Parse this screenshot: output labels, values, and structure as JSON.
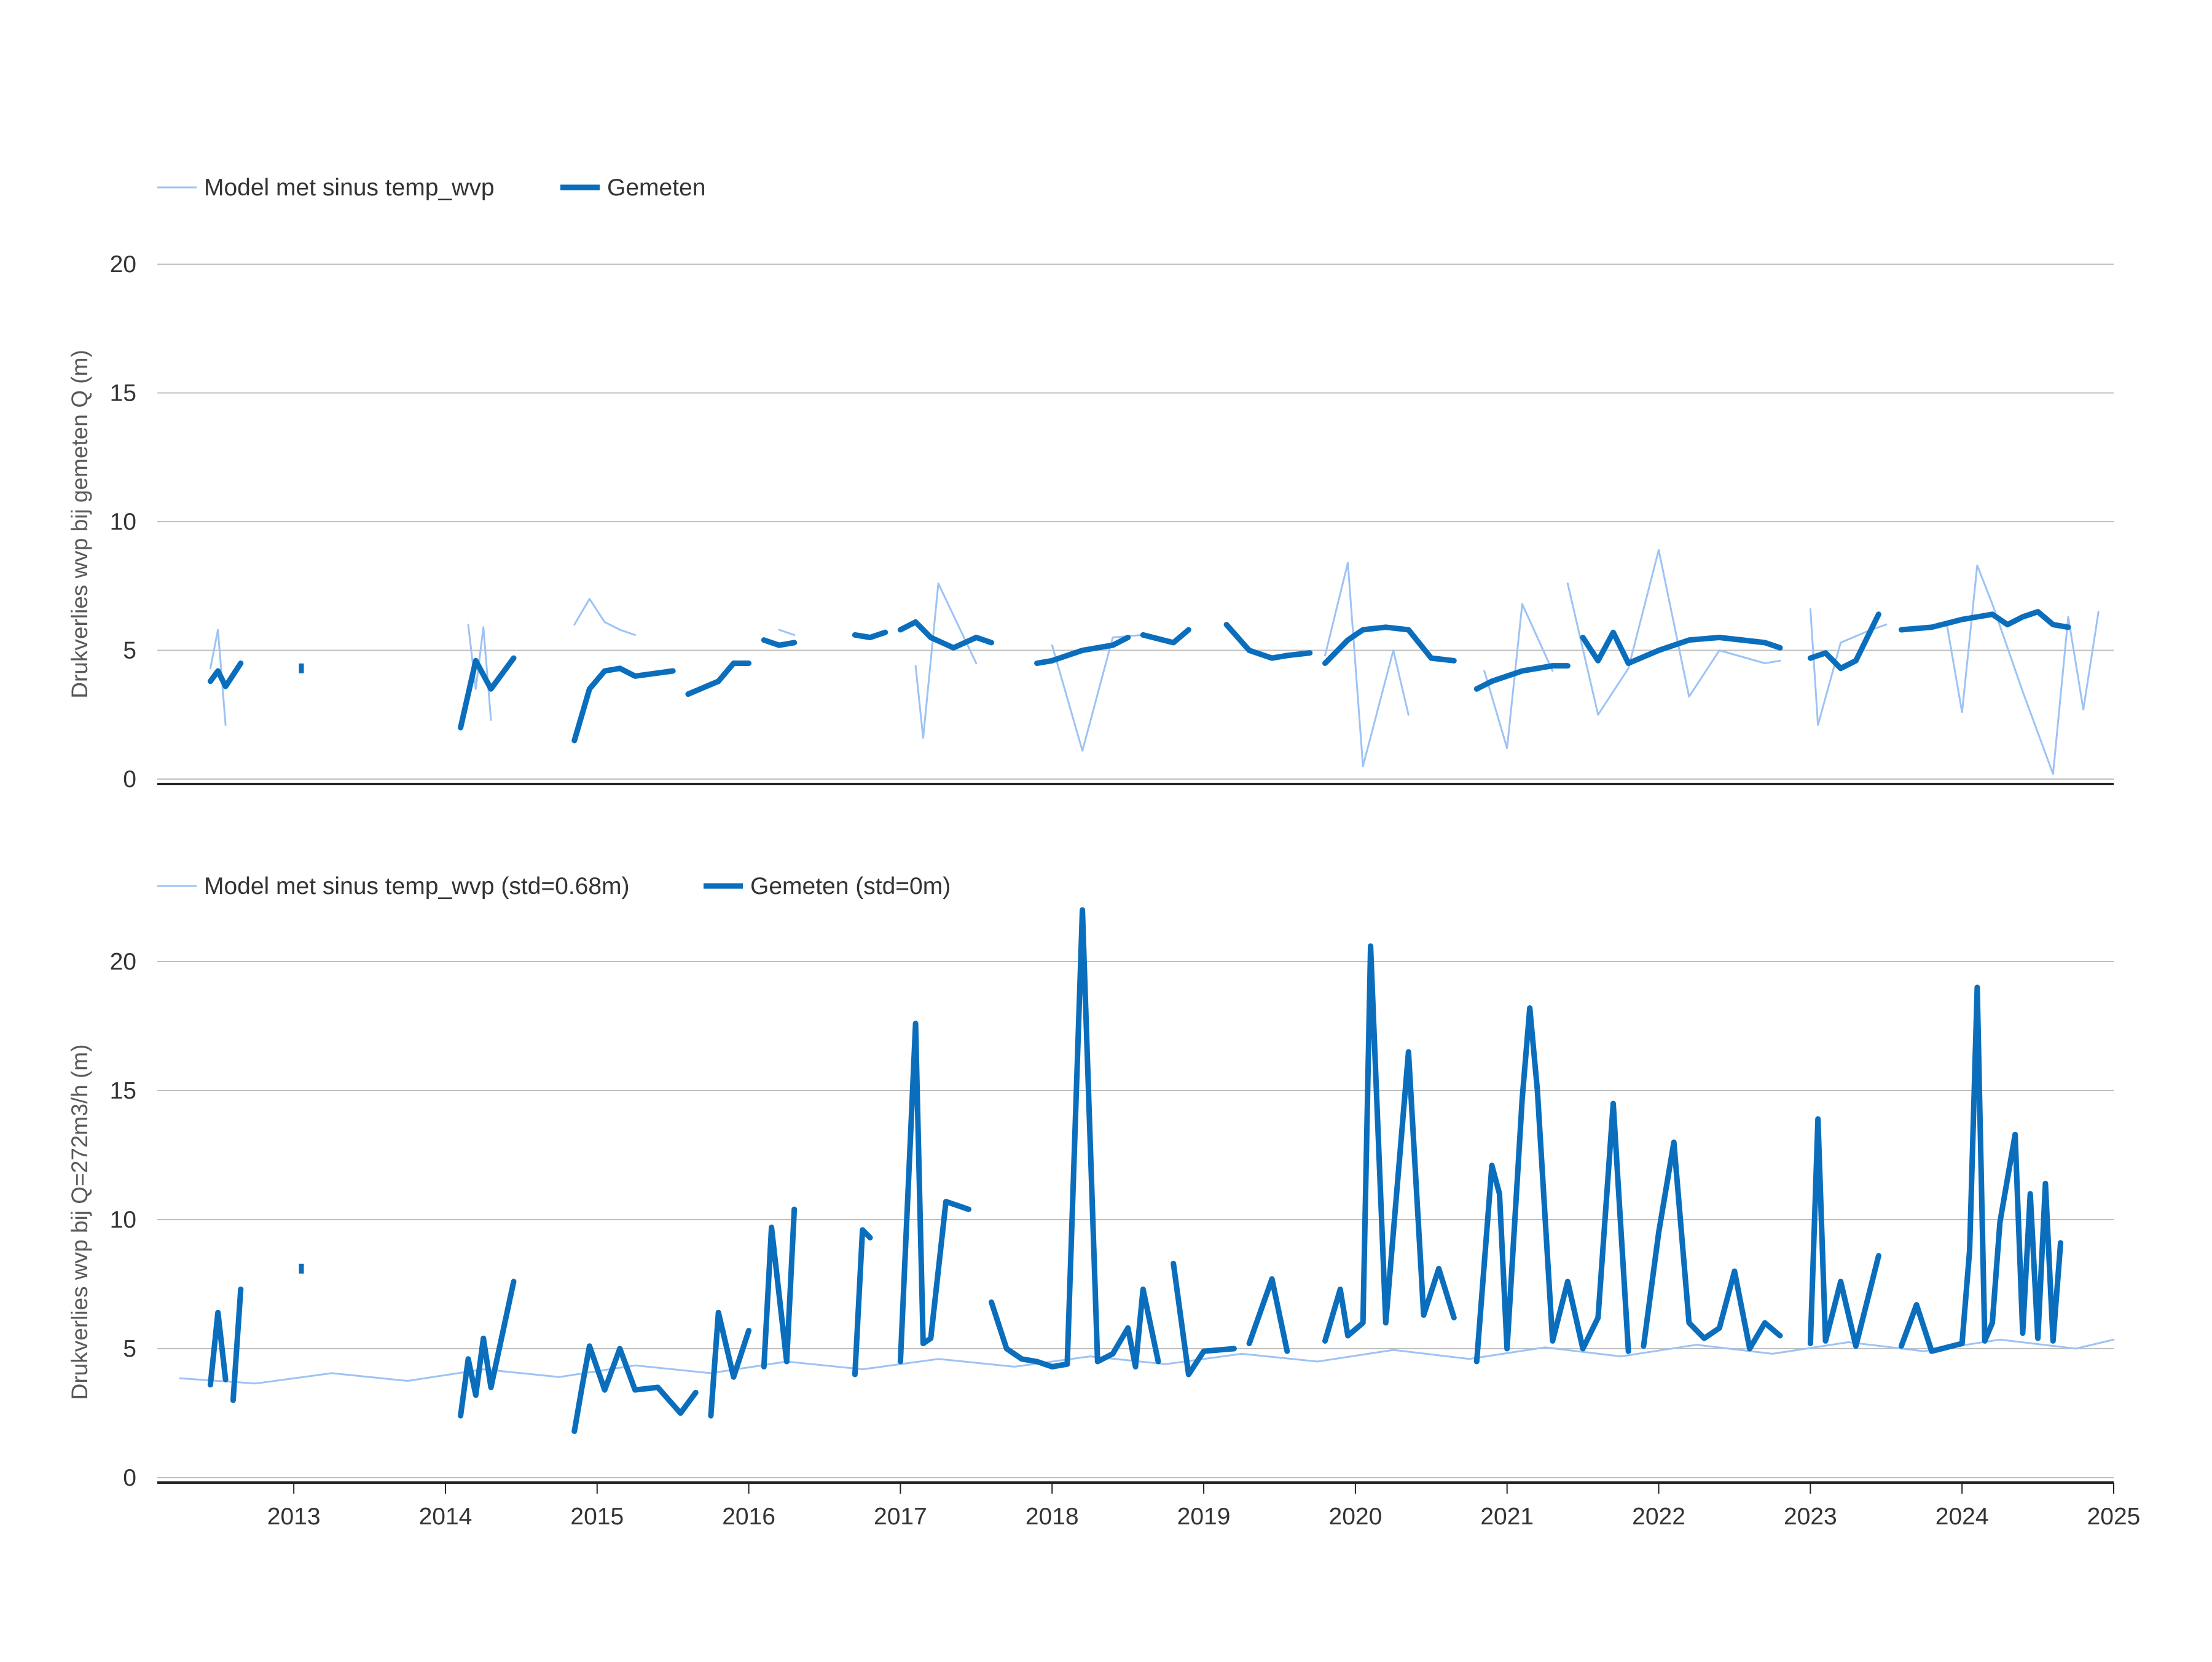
{
  "colors": {
    "model": "#9DC3F5",
    "gemeten": "#0A6EBD",
    "grid": "#BFBFBF",
    "axis": "#222222",
    "text": "#333333"
  },
  "x_axis": {
    "tick_labels": [
      "2013",
      "2014",
      "2015",
      "2016",
      "2017",
      "2018",
      "2019",
      "2020",
      "2021",
      "2022",
      "2023",
      "2024",
      "2025"
    ],
    "range": [
      2012.1,
      2025.0
    ]
  },
  "chart_data": [
    {
      "type": "line",
      "legend": [
        {
          "name": "Model met sinus temp_wvp",
          "style": "thin"
        },
        {
          "name": "Gemeten",
          "style": "thick"
        }
      ],
      "xlabel": "",
      "ylabel": "Drukverlies wvp bij gemeten Q (m)",
      "ylim": [
        0,
        20
      ],
      "yticks": [
        "0",
        "5",
        "10",
        "15",
        "20"
      ],
      "grid": true,
      "legend_position": "top-left",
      "series": [
        {
          "name": "Model met sinus temp_wvp",
          "segments": [
            {
              "x": [
                2012.45,
                2012.5,
                2012.55
              ],
              "y": [
                4.3,
                5.8,
                2.1
              ]
            },
            {
              "x": [
                2014.15,
                2014.2,
                2014.25,
                2014.3
              ],
              "y": [
                6.0,
                3.5,
                5.9,
                2.3
              ]
            },
            {
              "x": [
                2014.85,
                2014.95,
                2015.05,
                2015.15,
                2015.25
              ],
              "y": [
                6.0,
                7.0,
                6.1,
                5.8,
                5.6
              ]
            },
            {
              "x": [
                2016.2,
                2016.3
              ],
              "y": [
                5.8,
                5.6
              ]
            },
            {
              "x": [
                2017.1,
                2017.15,
                2017.25,
                2017.5
              ],
              "y": [
                4.4,
                1.6,
                7.6,
                4.5
              ]
            },
            {
              "x": [
                2018.0,
                2018.2,
                2018.4,
                2018.6
              ],
              "y": [
                5.2,
                1.1,
                5.5,
                5.6
              ]
            },
            {
              "x": [
                2019.8,
                2019.95,
                2020.05,
                2020.25,
                2020.35
              ],
              "y": [
                4.8,
                8.4,
                0.5,
                5.0,
                2.5
              ]
            },
            {
              "x": [
                2020.85,
                2021.0,
                2021.1,
                2021.3
              ],
              "y": [
                4.2,
                1.2,
                6.8,
                4.2
              ]
            },
            {
              "x": [
                2021.4,
                2021.6,
                2021.8,
                2022.0,
                2022.2,
                2022.4,
                2022.7,
                2022.8
              ],
              "y": [
                7.6,
                2.5,
                4.3,
                8.9,
                3.2,
                5.0,
                4.5,
                4.6
              ]
            },
            {
              "x": [
                2023.0,
                2023.05,
                2023.2,
                2023.4,
                2023.5
              ],
              "y": [
                6.6,
                2.1,
                5.3,
                5.8,
                6.0
              ]
            },
            {
              "x": [
                2023.9,
                2024.0,
                2024.1,
                2024.2,
                2024.4,
                2024.6,
                2024.7,
                2024.8,
                2024.9
              ],
              "y": [
                6.0,
                2.6,
                8.3,
                6.8,
                3.4,
                0.2,
                6.3,
                2.7,
                6.5
              ]
            }
          ]
        },
        {
          "name": "Gemeten",
          "segments": [
            {
              "x": [
                2012.45,
                2012.5,
                2012.55,
                2012.65
              ],
              "y": [
                3.8,
                4.2,
                3.6,
                4.5
              ]
            },
            {
              "x": [
                2013.05
              ],
              "y": [
                4.3
              ]
            },
            {
              "x": [
                2014.1,
                2014.2,
                2014.3,
                2014.45
              ],
              "y": [
                2.0,
                4.6,
                3.5,
                4.7
              ]
            },
            {
              "x": [
                2014.85,
                2014.95,
                2015.05,
                2015.15,
                2015.25,
                2015.5
              ],
              "y": [
                1.5,
                3.5,
                4.2,
                4.3,
                4.0,
                4.2
              ]
            },
            {
              "x": [
                2015.6,
                2015.8,
                2015.9,
                2016.0
              ],
              "y": [
                3.3,
                3.8,
                4.5,
                4.5
              ]
            },
            {
              "x": [
                2016.1,
                2016.2,
                2016.3
              ],
              "y": [
                5.4,
                5.2,
                5.3
              ]
            },
            {
              "x": [
                2016.7,
                2016.8,
                2016.9
              ],
              "y": [
                5.6,
                5.5,
                5.7
              ]
            },
            {
              "x": [
                2017.0,
                2017.1,
                2017.2,
                2017.35,
                2017.5,
                2017.6
              ],
              "y": [
                5.8,
                6.1,
                5.5,
                5.1,
                5.5,
                5.3
              ]
            },
            {
              "x": [
                2017.9,
                2018.0,
                2018.2,
                2018.4,
                2018.5
              ],
              "y": [
                4.5,
                4.6,
                5.0,
                5.2,
                5.5
              ]
            },
            {
              "x": [
                2018.6,
                2018.8,
                2018.9
              ],
              "y": [
                5.6,
                5.3,
                5.8
              ]
            },
            {
              "x": [
                2019.15,
                2019.3,
                2019.45,
                2019.55,
                2019.7
              ],
              "y": [
                6.0,
                5.0,
                4.7,
                4.8,
                4.9
              ]
            },
            {
              "x": [
                2019.8,
                2019.95,
                2020.05,
                2020.2,
                2020.35,
                2020.5,
                2020.65
              ],
              "y": [
                4.5,
                5.4,
                5.8,
                5.9,
                5.8,
                4.7,
                4.6
              ]
            },
            {
              "x": [
                2020.8,
                2020.9,
                2021.0,
                2021.1,
                2021.2,
                2021.3,
                2021.4
              ],
              "y": [
                3.5,
                3.8,
                4.0,
                4.2,
                4.3,
                4.4,
                4.4
              ]
            },
            {
              "x": [
                2021.5,
                2021.6,
                2021.7,
                2021.8,
                2022.0,
                2022.2,
                2022.4,
                2022.7,
                2022.8
              ],
              "y": [
                5.5,
                4.6,
                5.7,
                4.5,
                5.0,
                5.4,
                5.5,
                5.3,
                5.1
              ]
            },
            {
              "x": [
                2023.0,
                2023.1,
                2023.2,
                2023.3,
                2023.45
              ],
              "y": [
                4.7,
                4.9,
                4.3,
                4.6,
                6.4
              ]
            },
            {
              "x": [
                2023.6,
                2023.8,
                2024.0,
                2024.1,
                2024.2,
                2024.3,
                2024.4,
                2024.5,
                2024.6,
                2024.7
              ],
              "y": [
                5.8,
                5.9,
                6.2,
                6.3,
                6.4,
                6.0,
                6.3,
                6.5,
                6.0,
                5.9
              ]
            }
          ]
        }
      ]
    },
    {
      "type": "line",
      "legend": [
        {
          "name": "Model met sinus temp_wvp (std=0.68m)",
          "style": "thin"
        },
        {
          "name": "Gemeten (std=0m)",
          "style": "thick"
        }
      ],
      "xlabel": "",
      "ylabel": "Drukverlies wvp bij Q=272m3/h (m)",
      "ylim": [
        0,
        22
      ],
      "yticks": [
        "0",
        "5",
        "10",
        "15",
        "20"
      ],
      "grid": true,
      "legend_position": "top-left",
      "series": [
        {
          "name": "Model met sinus temp_wvp (std=0.68m)",
          "segments": [
            {
              "x": [
                2012.25,
                2012.75,
                2013.25,
                2013.75,
                2014.25,
                2014.75,
                2015.25,
                2015.75,
                2016.25,
                2016.75,
                2017.25,
                2017.75,
                2018.25,
                2018.75,
                2019.25,
                2019.75,
                2020.25,
                2020.75,
                2021.25,
                2021.75,
                2022.25,
                2022.75,
                2023.25,
                2023.75,
                2024.25,
                2024.75,
                2025.0
              ],
              "y": [
                3.85,
                3.65,
                4.05,
                3.75,
                4.2,
                3.9,
                4.35,
                4.05,
                4.5,
                4.2,
                4.6,
                4.3,
                4.7,
                4.4,
                4.8,
                4.5,
                4.95,
                4.6,
                5.05,
                4.7,
                5.15,
                4.8,
                5.25,
                4.9,
                5.35,
                5.0,
                5.35
              ]
            }
          ]
        },
        {
          "name": "Gemeten (std=0m)",
          "segments": [
            {
              "x": [
                2012.45,
                2012.5,
                2012.55
              ],
              "y": [
                3.6,
                6.4,
                3.8
              ]
            },
            {
              "x": [
                2012.6,
                2012.65
              ],
              "y": [
                3.0,
                7.3
              ]
            },
            {
              "x": [
                2013.05
              ],
              "y": [
                8.1
              ]
            },
            {
              "x": [
                2014.1,
                2014.15,
                2014.2,
                2014.25,
                2014.3,
                2014.45
              ],
              "y": [
                2.4,
                4.6,
                3.2,
                5.4,
                3.5,
                7.6
              ]
            },
            {
              "x": [
                2014.85,
                2014.9,
                2014.95,
                2015.05,
                2015.15,
                2015.25,
                2015.4,
                2015.55,
                2015.65
              ],
              "y": [
                1.8,
                3.5,
                5.1,
                3.4,
                5.0,
                3.4,
                3.5,
                2.5,
                3.3
              ]
            },
            {
              "x": [
                2015.75,
                2015.8,
                2015.9,
                2016.0
              ],
              "y": [
                2.4,
                6.4,
                3.9,
                5.7
              ]
            },
            {
              "x": [
                2016.1,
                2016.15,
                2016.25,
                2016.3
              ],
              "y": [
                4.3,
                9.7,
                4.5,
                10.4
              ]
            },
            {
              "x": [
                2016.7,
                2016.75,
                2016.8
              ],
              "y": [
                4.0,
                9.6,
                9.3
              ]
            },
            {
              "x": [
                2017.0,
                2017.1,
                2017.15,
                2017.2,
                2017.3,
                2017.45
              ],
              "y": [
                4.5,
                17.6,
                5.2,
                5.4,
                10.7,
                10.4
              ]
            },
            {
              "x": [
                2017.6,
                2017.7,
                2017.8,
                2017.9,
                2018.0,
                2018.1,
                2018.2,
                2018.3,
                2018.4,
                2018.5,
                2018.55,
                2018.6,
                2018.7
              ],
              "y": [
                6.8,
                5.0,
                4.6,
                4.5,
                4.3,
                4.4,
                22.0,
                4.5,
                4.8,
                5.8,
                4.3,
                7.3,
                4.5
              ]
            },
            {
              "x": [
                2018.8,
                2018.9,
                2019.0,
                2019.2
              ],
              "y": [
                8.3,
                4.0,
                4.9,
                5.0
              ]
            },
            {
              "x": [
                2019.3,
                2019.45,
                2019.55
              ],
              "y": [
                5.2,
                7.7,
                4.9
              ]
            },
            {
              "x": [
                2019.8,
                2019.9,
                2019.95,
                2020.05,
                2020.1,
                2020.2,
                2020.35,
                2020.45,
                2020.55,
                2020.65
              ],
              "y": [
                5.3,
                7.3,
                5.5,
                6.0,
                20.6,
                6.0,
                16.5,
                6.3,
                8.1,
                6.2
              ]
            },
            {
              "x": [
                2020.8,
                2020.9,
                2020.95,
                2021.0,
                2021.1,
                2021.15,
                2021.2,
                2021.3,
                2021.4,
                2021.5,
                2021.6,
                2021.7,
                2021.8
              ],
              "y": [
                4.5,
                12.1,
                11.0,
                5.0,
                14.7,
                18.2,
                15.0,
                5.3,
                7.6,
                5.0,
                6.2,
                14.5,
                4.9
              ]
            },
            {
              "x": [
                2021.9,
                2022.0,
                2022.1,
                2022.2,
                2022.3,
                2022.4,
                2022.5,
                2022.6,
                2022.7,
                2022.8
              ],
              "y": [
                5.1,
                9.5,
                13.0,
                6.0,
                5.4,
                5.8,
                8.0,
                5.0,
                6.0,
                5.5
              ]
            },
            {
              "x": [
                2023.0,
                2023.05,
                2023.1,
                2023.2,
                2023.3,
                2023.45
              ],
              "y": [
                5.2,
                13.9,
                5.3,
                7.6,
                5.1,
                8.6
              ]
            },
            {
              "x": [
                2023.6,
                2023.7,
                2023.8,
                2024.0,
                2024.05,
                2024.1,
                2024.15,
                2024.2,
                2024.25,
                2024.35,
                2024.4,
                2024.45,
                2024.5,
                2024.55,
                2024.6,
                2024.65
              ],
              "y": [
                5.1,
                6.7,
                4.9,
                5.2,
                8.8,
                19.0,
                5.3,
                6.0,
                9.9,
                13.3,
                5.6,
                11.0,
                5.4,
                11.4,
                5.3,
                9.1
              ]
            }
          ]
        }
      ]
    }
  ]
}
